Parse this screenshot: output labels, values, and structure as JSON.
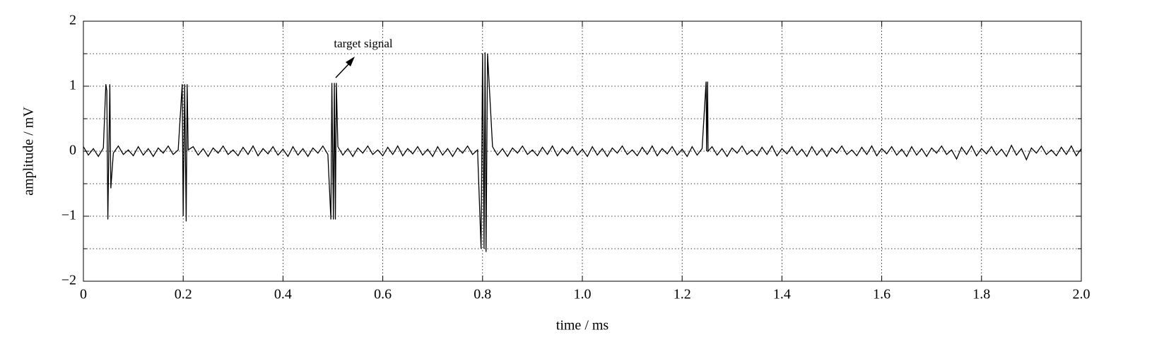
{
  "chart_data": {
    "type": "line",
    "xlabel": "time / ms",
    "ylabel": "amplitude / mV",
    "annotation": "target signal",
    "color": "#000000",
    "grid": true,
    "xlim": [
      0,
      2
    ],
    "ylim": [
      -2,
      2
    ],
    "xticks": [
      0,
      0.2,
      0.4,
      0.6,
      0.8,
      {
        "value": 1,
        "label": "1.0"
      },
      1.2,
      1.4,
      1.6,
      1.8,
      {
        "value": 2,
        "label": "2.0"
      }
    ],
    "yticks": [
      {
        "value": -2,
        "label": "−2"
      },
      {
        "value": -1,
        "label": "−1"
      },
      0,
      1,
      2
    ],
    "yminorgrid": [
      -1.5,
      -0.5,
      0.5,
      1.5
    ],
    "x": [
      0,
      0.01,
      0.02,
      0.03,
      0.04,
      0.045,
      0.047,
      0.049,
      0.053,
      0.055,
      0.06,
      0.07,
      0.08,
      0.09,
      0.1,
      0.11,
      0.12,
      0.13,
      0.14,
      0.15,
      0.16,
      0.17,
      0.18,
      0.19,
      0.198,
      0.2,
      0.203,
      0.206,
      0.208,
      0.21,
      0.22,
      0.23,
      0.24,
      0.25,
      0.26,
      0.27,
      0.28,
      0.29,
      0.3,
      0.31,
      0.32,
      0.33,
      0.34,
      0.35,
      0.36,
      0.37,
      0.38,
      0.39,
      0.4,
      0.41,
      0.42,
      0.43,
      0.44,
      0.45,
      0.46,
      0.47,
      0.48,
      0.49,
      0.496,
      0.498,
      0.501,
      0.503,
      0.505,
      0.507,
      0.51,
      0.52,
      0.53,
      0.54,
      0.55,
      0.56,
      0.57,
      0.58,
      0.59,
      0.6,
      0.61,
      0.62,
      0.63,
      0.64,
      0.65,
      0.66,
      0.67,
      0.68,
      0.69,
      0.7,
      0.71,
      0.72,
      0.73,
      0.74,
      0.75,
      0.76,
      0.77,
      0.78,
      0.79,
      0.797,
      0.8,
      0.803,
      0.805,
      0.807,
      0.81,
      0.82,
      0.83,
      0.84,
      0.85,
      0.86,
      0.87,
      0.88,
      0.89,
      0.9,
      0.91,
      0.92,
      0.93,
      0.94,
      0.95,
      0.96,
      0.97,
      0.98,
      0.99,
      1,
      1.01,
      1.02,
      1.03,
      1.04,
      1.05,
      1.06,
      1.07,
      1.08,
      1.09,
      1.1,
      1.11,
      1.12,
      1.13,
      1.14,
      1.15,
      1.16,
      1.17,
      1.18,
      1.19,
      1.2,
      1.21,
      1.22,
      1.23,
      1.24,
      1.248,
      1.249,
      1.251,
      1.252,
      1.26,
      1.27,
      1.28,
      1.29,
      1.3,
      1.31,
      1.32,
      1.33,
      1.34,
      1.35,
      1.36,
      1.37,
      1.38,
      1.39,
      1.4,
      1.41,
      1.42,
      1.43,
      1.44,
      1.45,
      1.46,
      1.47,
      1.48,
      1.49,
      1.5,
      1.51,
      1.52,
      1.53,
      1.54,
      1.55,
      1.56,
      1.57,
      1.58,
      1.59,
      1.6,
      1.61,
      1.62,
      1.63,
      1.64,
      1.65,
      1.66,
      1.67,
      1.68,
      1.69,
      1.7,
      1.71,
      1.72,
      1.73,
      1.74,
      1.75,
      1.76,
      1.77,
      1.78,
      1.79,
      1.8,
      1.81,
      1.82,
      1.83,
      1.84,
      1.85,
      1.86,
      1.87,
      1.88,
      1.89,
      1.9,
      1.91,
      1.92,
      1.93,
      1.94,
      1.95,
      1.96,
      1.97,
      1.98,
      1.99,
      2
    ],
    "values": [
      0.07,
      -0.06,
      0.04,
      -0.08,
      0.05,
      1.03,
      0.93,
      -1.05,
      1.03,
      -0.57,
      -0.03,
      0.08,
      -0.05,
      0.02,
      -0.07,
      0.07,
      -0.06,
      0.04,
      -0.08,
      0.05,
      -0.03,
      0.08,
      -0.05,
      0.02,
      1.03,
      -1.0,
      1.03,
      -1.08,
      1.03,
      0.02,
      0.07,
      -0.06,
      0.04,
      -0.08,
      0.05,
      -0.03,
      0.08,
      -0.05,
      0.02,
      -0.07,
      0.06,
      -0.05,
      0.08,
      -0.07,
      0.04,
      -0.04,
      0.07,
      -0.06,
      0.03,
      -0.08,
      0.07,
      -0.06,
      0.04,
      -0.08,
      0.05,
      -0.03,
      0.08,
      -0.05,
      -1.05,
      1.05,
      -1.05,
      1.05,
      -1.05,
      1.05,
      0.07,
      -0.06,
      0.04,
      -0.08,
      0.05,
      -0.03,
      0.08,
      -0.05,
      0.02,
      -0.07,
      0.06,
      -0.05,
      0.08,
      -0.07,
      0.04,
      -0.04,
      0.07,
      -0.06,
      0.03,
      -0.08,
      0.07,
      -0.06,
      0.04,
      -0.08,
      0.05,
      -0.03,
      0.08,
      -0.05,
      0.02,
      -1.5,
      1.5,
      -1.5,
      1.52,
      -1.55,
      1.5,
      0.07,
      -0.06,
      0.04,
      -0.08,
      0.05,
      -0.03,
      0.08,
      -0.05,
      0.02,
      -0.07,
      0.06,
      -0.05,
      0.08,
      -0.07,
      0.04,
      -0.04,
      0.07,
      -0.06,
      0.03,
      -0.08,
      0.07,
      -0.06,
      0.04,
      -0.08,
      0.05,
      -0.03,
      0.08,
      -0.05,
      0.02,
      -0.07,
      0.06,
      -0.05,
      0.08,
      -0.07,
      0.04,
      -0.04,
      0.07,
      -0.06,
      0.03,
      -0.08,
      0.07,
      -0.06,
      0.04,
      1.07,
      0.0,
      1.07,
      0.0,
      0.07,
      -0.06,
      0.04,
      -0.08,
      0.05,
      -0.03,
      0.08,
      -0.05,
      0.02,
      -0.07,
      0.06,
      -0.05,
      0.08,
      -0.07,
      0.04,
      -0.04,
      0.07,
      -0.06,
      0.03,
      -0.08,
      0.07,
      -0.06,
      0.04,
      -0.08,
      0.05,
      -0.03,
      0.08,
      -0.05,
      0.02,
      -0.07,
      0.06,
      -0.05,
      0.08,
      -0.07,
      0.04,
      -0.04,
      0.07,
      -0.06,
      0.03,
      -0.08,
      0.07,
      -0.06,
      0.04,
      -0.08,
      0.05,
      -0.03,
      0.08,
      -0.05,
      0.02,
      -0.12,
      0.06,
      -0.05,
      0.08,
      -0.07,
      0.04,
      -0.04,
      0.07,
      -0.06,
      0.03,
      -0.08,
      0.09,
      -0.06,
      0.04,
      -0.13,
      0.05,
      -0.03,
      0.08,
      -0.05,
      0.02,
      -0.07,
      0.06,
      -0.05,
      0.08,
      -0.07,
      0.04
    ]
  }
}
